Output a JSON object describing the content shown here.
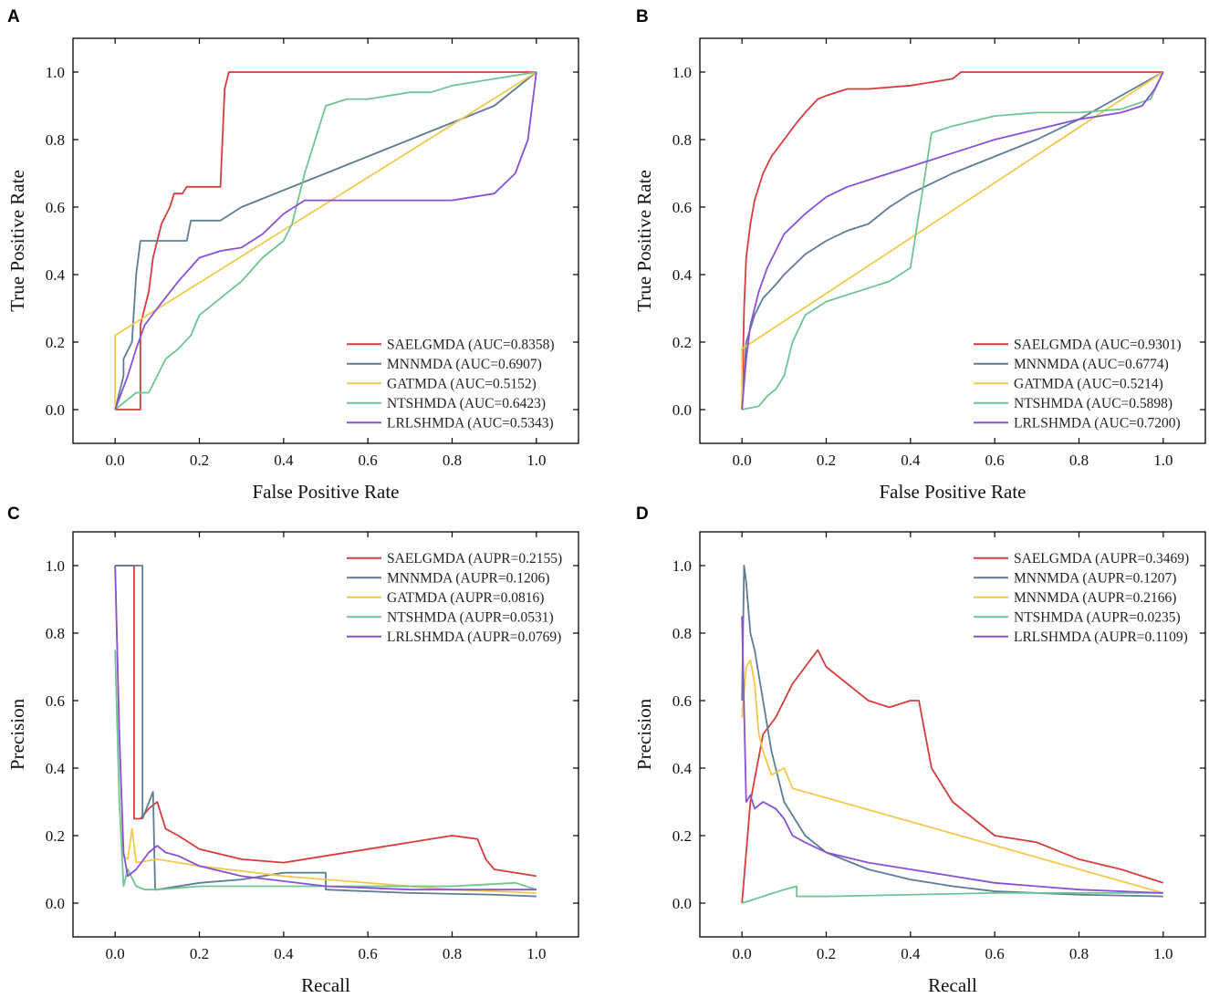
{
  "chart_data": [
    {
      "panel": "A",
      "type": "line",
      "xlabel": "False Positive Rate",
      "ylabel": "True Positive Rate",
      "xlim": [
        -0.1,
        1.1
      ],
      "ylim": [
        -0.1,
        1.1
      ],
      "xticks": [
        "0.0",
        "0.2",
        "0.4",
        "0.6",
        "0.8",
        "1.0"
      ],
      "yticks": [
        "0.0",
        "0.2",
        "0.4",
        "0.6",
        "0.8",
        "1.0"
      ],
      "legend_position": "bottom-right",
      "series": [
        {
          "name": "SAELGMDA (AUC=0.8358)",
          "color": "#d63c3c",
          "x": [
            0,
            0.06,
            0.06,
            0.08,
            0.09,
            0.1,
            0.11,
            0.13,
            0.14,
            0.16,
            0.17,
            0.18,
            0.2,
            0.25,
            0.26,
            0.27,
            0.28,
            1.0
          ],
          "y": [
            0,
            0,
            0.25,
            0.35,
            0.45,
            0.5,
            0.55,
            0.6,
            0.64,
            0.64,
            0.66,
            0.66,
            0.66,
            0.66,
            0.95,
            1.0,
            1.0,
            1.0
          ]
        },
        {
          "name": "MNNMDA (AUC=0.6907)",
          "color": "#5e7c96",
          "x": [
            0,
            0.02,
            0.02,
            0.04,
            0.05,
            0.06,
            0.07,
            0.08,
            0.1,
            0.17,
            0.18,
            0.25,
            0.3,
            0.4,
            0.5,
            0.6,
            0.7,
            0.8,
            0.9,
            1.0
          ],
          "y": [
            0,
            0.1,
            0.15,
            0.2,
            0.4,
            0.5,
            0.5,
            0.5,
            0.5,
            0.5,
            0.56,
            0.56,
            0.6,
            0.65,
            0.7,
            0.75,
            0.8,
            0.85,
            0.9,
            1.0
          ]
        },
        {
          "name": "GATMDA (AUC=0.5152)",
          "color": "#f2c94c",
          "x": [
            0,
            0,
            1.0
          ],
          "y": [
            0,
            0.22,
            1.0
          ]
        },
        {
          "name": "NTSHMDA (AUC=0.6423)",
          "color": "#6fc592",
          "x": [
            0,
            0.05,
            0.08,
            0.1,
            0.12,
            0.15,
            0.18,
            0.2,
            0.25,
            0.3,
            0.35,
            0.4,
            0.42,
            0.45,
            0.5,
            0.55,
            0.6,
            0.7,
            0.75,
            0.8,
            0.9,
            0.95,
            1.0
          ],
          "y": [
            0,
            0.05,
            0.05,
            0.1,
            0.15,
            0.18,
            0.22,
            0.28,
            0.33,
            0.38,
            0.45,
            0.5,
            0.55,
            0.7,
            0.9,
            0.92,
            0.92,
            0.94,
            0.94,
            0.96,
            0.98,
            0.99,
            1.0
          ]
        },
        {
          "name": "LRLSHMDA (AUC=0.5343)",
          "color": "#8a4fd6",
          "x": [
            0,
            0.03,
            0.05,
            0.07,
            0.1,
            0.15,
            0.2,
            0.25,
            0.3,
            0.35,
            0.4,
            0.45,
            0.5,
            0.6,
            0.7,
            0.8,
            0.9,
            0.95,
            0.98,
            1.0
          ],
          "y": [
            0,
            0.1,
            0.18,
            0.25,
            0.3,
            0.38,
            0.45,
            0.47,
            0.48,
            0.52,
            0.58,
            0.62,
            0.62,
            0.62,
            0.62,
            0.62,
            0.64,
            0.7,
            0.8,
            1.0
          ]
        }
      ]
    },
    {
      "panel": "B",
      "type": "line",
      "xlabel": "False Positive Rate",
      "ylabel": "True Positive Rate",
      "xlim": [
        -0.1,
        1.1
      ],
      "ylim": [
        -0.1,
        1.1
      ],
      "xticks": [
        "0.0",
        "0.2",
        "0.4",
        "0.6",
        "0.8",
        "1.0"
      ],
      "yticks": [
        "0.0",
        "0.2",
        "0.4",
        "0.6",
        "0.8",
        "1.0"
      ],
      "legend_position": "bottom-right",
      "series": [
        {
          "name": "SAELGMDA (AUC=0.9301)",
          "color": "#d63c3c",
          "x": [
            0,
            0.005,
            0.01,
            0.02,
            0.03,
            0.05,
            0.07,
            0.1,
            0.13,
            0.15,
            0.18,
            0.2,
            0.25,
            0.3,
            0.4,
            0.45,
            0.5,
            0.52,
            0.6,
            1.0
          ],
          "y": [
            0,
            0.3,
            0.45,
            0.55,
            0.62,
            0.7,
            0.75,
            0.8,
            0.85,
            0.88,
            0.92,
            0.93,
            0.95,
            0.95,
            0.96,
            0.97,
            0.98,
            1.0,
            1.0,
            1.0
          ]
        },
        {
          "name": "MNNMDA (AUC=0.6774)",
          "color": "#5e7c96",
          "x": [
            0,
            0.01,
            0.03,
            0.05,
            0.08,
            0.1,
            0.15,
            0.2,
            0.25,
            0.3,
            0.35,
            0.4,
            0.5,
            0.6,
            0.7,
            0.8,
            0.9,
            1.0
          ],
          "y": [
            0,
            0.2,
            0.28,
            0.33,
            0.37,
            0.4,
            0.46,
            0.5,
            0.53,
            0.55,
            0.6,
            0.64,
            0.7,
            0.75,
            0.8,
            0.86,
            0.93,
            1.0
          ]
        },
        {
          "name": "GATMDA (AUC=0.5214)",
          "color": "#f2c94c",
          "x": [
            0,
            0,
            1.0
          ],
          "y": [
            0,
            0.18,
            1.0
          ]
        },
        {
          "name": "NTSHMDA (AUC=0.5898)",
          "color": "#6fc592",
          "x": [
            0,
            0.04,
            0.06,
            0.08,
            0.1,
            0.12,
            0.15,
            0.2,
            0.25,
            0.3,
            0.35,
            0.4,
            0.45,
            0.5,
            0.6,
            0.7,
            0.8,
            0.9,
            0.97,
            1.0
          ],
          "y": [
            0,
            0.01,
            0.04,
            0.06,
            0.1,
            0.2,
            0.28,
            0.32,
            0.34,
            0.36,
            0.38,
            0.42,
            0.82,
            0.84,
            0.87,
            0.88,
            0.88,
            0.89,
            0.92,
            1.0
          ]
        },
        {
          "name": "LRLSHMDA (AUC=0.7200)",
          "color": "#8a4fd6",
          "x": [
            0,
            0.01,
            0.02,
            0.04,
            0.06,
            0.08,
            0.1,
            0.15,
            0.2,
            0.25,
            0.3,
            0.4,
            0.5,
            0.6,
            0.7,
            0.8,
            0.85,
            0.9,
            0.95,
            0.98,
            1.0
          ],
          "y": [
            0,
            0.15,
            0.25,
            0.35,
            0.42,
            0.47,
            0.52,
            0.58,
            0.63,
            0.66,
            0.68,
            0.72,
            0.76,
            0.8,
            0.83,
            0.86,
            0.87,
            0.88,
            0.9,
            0.95,
            1.0
          ]
        }
      ]
    },
    {
      "panel": "C",
      "type": "line",
      "xlabel": "Recall",
      "ylabel": "Precision",
      "xlim": [
        -0.1,
        1.1
      ],
      "ylim": [
        -0.1,
        1.1
      ],
      "xticks": [
        "0.0",
        "0.2",
        "0.4",
        "0.6",
        "0.8",
        "1.0"
      ],
      "yticks": [
        "0.0",
        "0.2",
        "0.4",
        "0.6",
        "0.8",
        "1.0"
      ],
      "legend_position": "top-right",
      "series": [
        {
          "name": "SAELGMDA (AUPR=0.2155)",
          "color": "#d63c3c",
          "x": [
            0,
            0.04,
            0.045,
            0.045,
            0.06,
            0.08,
            0.1,
            0.12,
            0.15,
            0.2,
            0.3,
            0.4,
            0.5,
            0.6,
            0.7,
            0.8,
            0.86,
            0.88,
            0.9,
            1.0
          ],
          "y": [
            1.0,
            1.0,
            1.0,
            0.25,
            0.25,
            0.28,
            0.3,
            0.22,
            0.2,
            0.16,
            0.13,
            0.12,
            0.14,
            0.16,
            0.18,
            0.2,
            0.19,
            0.13,
            0.1,
            0.08
          ]
        },
        {
          "name": "MNNMDA (AUPR=0.1206)",
          "color": "#5e7c96",
          "x": [
            0,
            0.06,
            0.065,
            0.065,
            0.09,
            0.095,
            0.1,
            0.2,
            0.3,
            0.4,
            0.5,
            0.5,
            0.7,
            0.9,
            1.0
          ],
          "y": [
            1.0,
            1.0,
            1.0,
            0.25,
            0.33,
            0.04,
            0.04,
            0.06,
            0.07,
            0.09,
            0.09,
            0.04,
            0.03,
            0.025,
            0.02
          ]
        },
        {
          "name": "GATMDA (AUPR=0.0816)",
          "color": "#f2c94c",
          "x": [
            0,
            0.01,
            0.02,
            0.03,
            0.04,
            0.05,
            0.1,
            0.2,
            0.4,
            0.6,
            0.8,
            1.0
          ],
          "y": [
            1.0,
            0.5,
            0.14,
            0.13,
            0.22,
            0.12,
            0.13,
            0.11,
            0.08,
            0.06,
            0.04,
            0.03
          ]
        },
        {
          "name": "NTSHMDA (AUPR=0.0531)",
          "color": "#6fc592",
          "x": [
            0,
            0.01,
            0.02,
            0.03,
            0.05,
            0.07,
            0.1,
            0.2,
            0.4,
            0.6,
            0.8,
            0.95,
            1.0
          ],
          "y": [
            0.75,
            0.3,
            0.05,
            0.1,
            0.05,
            0.04,
            0.04,
            0.05,
            0.05,
            0.05,
            0.05,
            0.06,
            0.04
          ]
        },
        {
          "name": "LRLSHMDA (AUPR=0.0769)",
          "color": "#8a4fd6",
          "x": [
            0,
            0.01,
            0.02,
            0.03,
            0.05,
            0.08,
            0.1,
            0.12,
            0.15,
            0.2,
            0.3,
            0.5,
            0.7,
            1.0
          ],
          "y": [
            1.0,
            0.5,
            0.15,
            0.08,
            0.1,
            0.15,
            0.17,
            0.15,
            0.14,
            0.11,
            0.08,
            0.05,
            0.04,
            0.04
          ]
        }
      ]
    },
    {
      "panel": "D",
      "type": "line",
      "xlabel": "Recall",
      "ylabel": "Precision",
      "xlim": [
        -0.1,
        1.1
      ],
      "ylim": [
        -0.1,
        1.1
      ],
      "xticks": [
        "0.0",
        "0.2",
        "0.4",
        "0.6",
        "0.8",
        "1.0"
      ],
      "yticks": [
        "0.0",
        "0.2",
        "0.4",
        "0.6",
        "0.8",
        "1.0"
      ],
      "legend_position": "top-right",
      "series": [
        {
          "name": "SAELGMDA (AUPR=0.3469)",
          "color": "#d63c3c",
          "x": [
            0,
            0.02,
            0.05,
            0.08,
            0.12,
            0.15,
            0.18,
            0.2,
            0.25,
            0.3,
            0.35,
            0.4,
            0.42,
            0.45,
            0.5,
            0.55,
            0.6,
            0.7,
            0.8,
            0.9,
            1.0
          ],
          "y": [
            0,
            0.3,
            0.5,
            0.55,
            0.65,
            0.7,
            0.75,
            0.7,
            0.65,
            0.6,
            0.58,
            0.6,
            0.6,
            0.4,
            0.3,
            0.25,
            0.2,
            0.18,
            0.13,
            0.1,
            0.06
          ]
        },
        {
          "name": "MNNMDA (AUPR=0.1207)",
          "color": "#5e7c96",
          "x": [
            0,
            0.005,
            0.01,
            0.02,
            0.03,
            0.05,
            0.07,
            0.1,
            0.15,
            0.2,
            0.3,
            0.4,
            0.5,
            0.6,
            0.8,
            1.0
          ],
          "y": [
            0.6,
            1.0,
            0.95,
            0.8,
            0.75,
            0.6,
            0.45,
            0.3,
            0.2,
            0.15,
            0.1,
            0.07,
            0.05,
            0.035,
            0.025,
            0.02
          ]
        },
        {
          "name": "MNNMDA (AUPR=0.2166)",
          "color": "#f2c94c",
          "x": [
            0,
            0.01,
            0.02,
            0.03,
            0.04,
            0.05,
            0.07,
            0.1,
            0.12,
            1.0
          ],
          "y": [
            0.55,
            0.7,
            0.72,
            0.65,
            0.5,
            0.45,
            0.38,
            0.4,
            0.34,
            0.03
          ]
        },
        {
          "name": "NTSHMDA (AUPR=0.0235)",
          "color": "#6fc592",
          "x": [
            0,
            0.05,
            0.1,
            0.13,
            0.13,
            0.2,
            0.4,
            0.6,
            0.8,
            1.0
          ],
          "y": [
            0,
            0.02,
            0.04,
            0.05,
            0.02,
            0.02,
            0.025,
            0.03,
            0.03,
            0.03
          ]
        },
        {
          "name": "LRLSHMDA (AUPR=0.1109)",
          "color": "#8a4fd6",
          "x": [
            0,
            0.01,
            0.02,
            0.03,
            0.05,
            0.08,
            0.1,
            0.12,
            0.15,
            0.2,
            0.3,
            0.4,
            0.5,
            0.6,
            0.8,
            1.0
          ],
          "y": [
            0.85,
            0.3,
            0.32,
            0.28,
            0.3,
            0.28,
            0.25,
            0.2,
            0.18,
            0.15,
            0.12,
            0.1,
            0.08,
            0.06,
            0.04,
            0.03
          ]
        }
      ]
    }
  ]
}
